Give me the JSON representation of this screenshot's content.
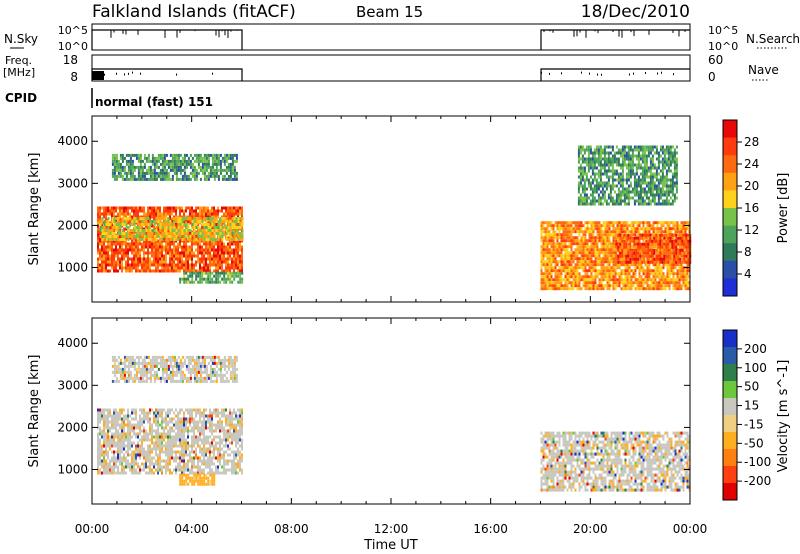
{
  "header": {
    "site": "Falkland Islands (fitACF)",
    "beam": "Beam 15",
    "date": "18/Dec/2010"
  },
  "strips": {
    "nsky_label": "N.Sky",
    "nsearch_label": "N.Search",
    "nsky_ticks": [
      "10^5",
      "10^0"
    ],
    "nsearch_ticks": [
      "10^5",
      "10^0"
    ],
    "freq_label": "Freq.",
    "freq_unit": "[MHz]",
    "freq_ticks": [
      "18",
      "8"
    ],
    "nave_label": "Nave",
    "nave_ticks": [
      "60",
      "0"
    ],
    "cpid_label": "CPID",
    "cpid_value": "normal (fast) 151"
  },
  "colors": {
    "power": [
      "#1f2fd6",
      "#2a4fa6",
      "#2f7a5a",
      "#4ea35a",
      "#79c24a",
      "#ffd21a",
      "#ffa015",
      "#ff6a10",
      "#ff3a0c",
      "#e80808"
    ],
    "velocity": [
      "#1830c8",
      "#2a5aa8",
      "#2f7f4a",
      "#6cc83a",
      "#c8c8c0",
      "#f0d080",
      "#ffae20",
      "#ff8010",
      "#ff4010",
      "#e00000"
    ]
  },
  "chart_data": [
    {
      "type": "heatmap",
      "name": "power",
      "ylabel": "Slant Range [km]",
      "xlabel": "",
      "colorbar_label": "Power [dB]",
      "colorbar_ticks": [
        "28",
        "24",
        "20",
        "16",
        "12",
        "8",
        "4"
      ],
      "xlim": [
        0,
        24
      ],
      "ylim": [
        180,
        4600
      ],
      "yticks": [
        "1000",
        "2000",
        "3000",
        "4000"
      ],
      "coverage_hours": [
        [
          0,
          6
        ],
        [
          18,
          24
        ]
      ],
      "echo_regions": [
        {
          "x": [
            0.2,
            6.0
          ],
          "y": [
            950,
            2450
          ],
          "level": 0.82
        },
        {
          "x": [
            0.3,
            6.0
          ],
          "y": [
            1700,
            2200
          ],
          "level": 0.55
        },
        {
          "x": [
            3.5,
            6.0
          ],
          "y": [
            650,
            900
          ],
          "level": 0.35
        },
        {
          "x": [
            0.8,
            5.8
          ],
          "y": [
            3100,
            3700
          ],
          "level": 0.3
        },
        {
          "x": [
            18.0,
            24.0
          ],
          "y": [
            500,
            2100
          ],
          "level": 0.7
        },
        {
          "x": [
            21.0,
            24.0
          ],
          "y": [
            1100,
            1800
          ],
          "level": 0.85
        },
        {
          "x": [
            19.5,
            23.5
          ],
          "y": [
            2500,
            3900
          ],
          "level": 0.3
        }
      ]
    },
    {
      "type": "heatmap",
      "name": "velocity",
      "ylabel": "Slant Range [km]",
      "xlabel": "Time UT",
      "colorbar_label": "Velocity [m s^-1]",
      "colorbar_ticks": [
        "200",
        "100",
        "50",
        "15",
        "-15",
        "-50",
        "-100",
        "-200"
      ],
      "xlim": [
        0,
        24
      ],
      "ylim": [
        180,
        4600
      ],
      "xticks": [
        "00:00",
        "04:00",
        "08:00",
        "12:00",
        "16:00",
        "20:00",
        "00:00"
      ],
      "yticks": [
        "1000",
        "2000",
        "3000",
        "4000"
      ],
      "echo_regions": [
        {
          "x": [
            0.2,
            6.0
          ],
          "y": [
            950,
            2450
          ],
          "level": 0.42
        },
        {
          "x": [
            3.5,
            4.9
          ],
          "y": [
            650,
            900
          ],
          "level": 0.68
        },
        {
          "x": [
            0.8,
            5.8
          ],
          "y": [
            3100,
            3700
          ],
          "level": 0.45
        },
        {
          "x": [
            18.0,
            24.0
          ],
          "y": [
            500,
            1900
          ],
          "level": 0.42
        }
      ]
    }
  ]
}
